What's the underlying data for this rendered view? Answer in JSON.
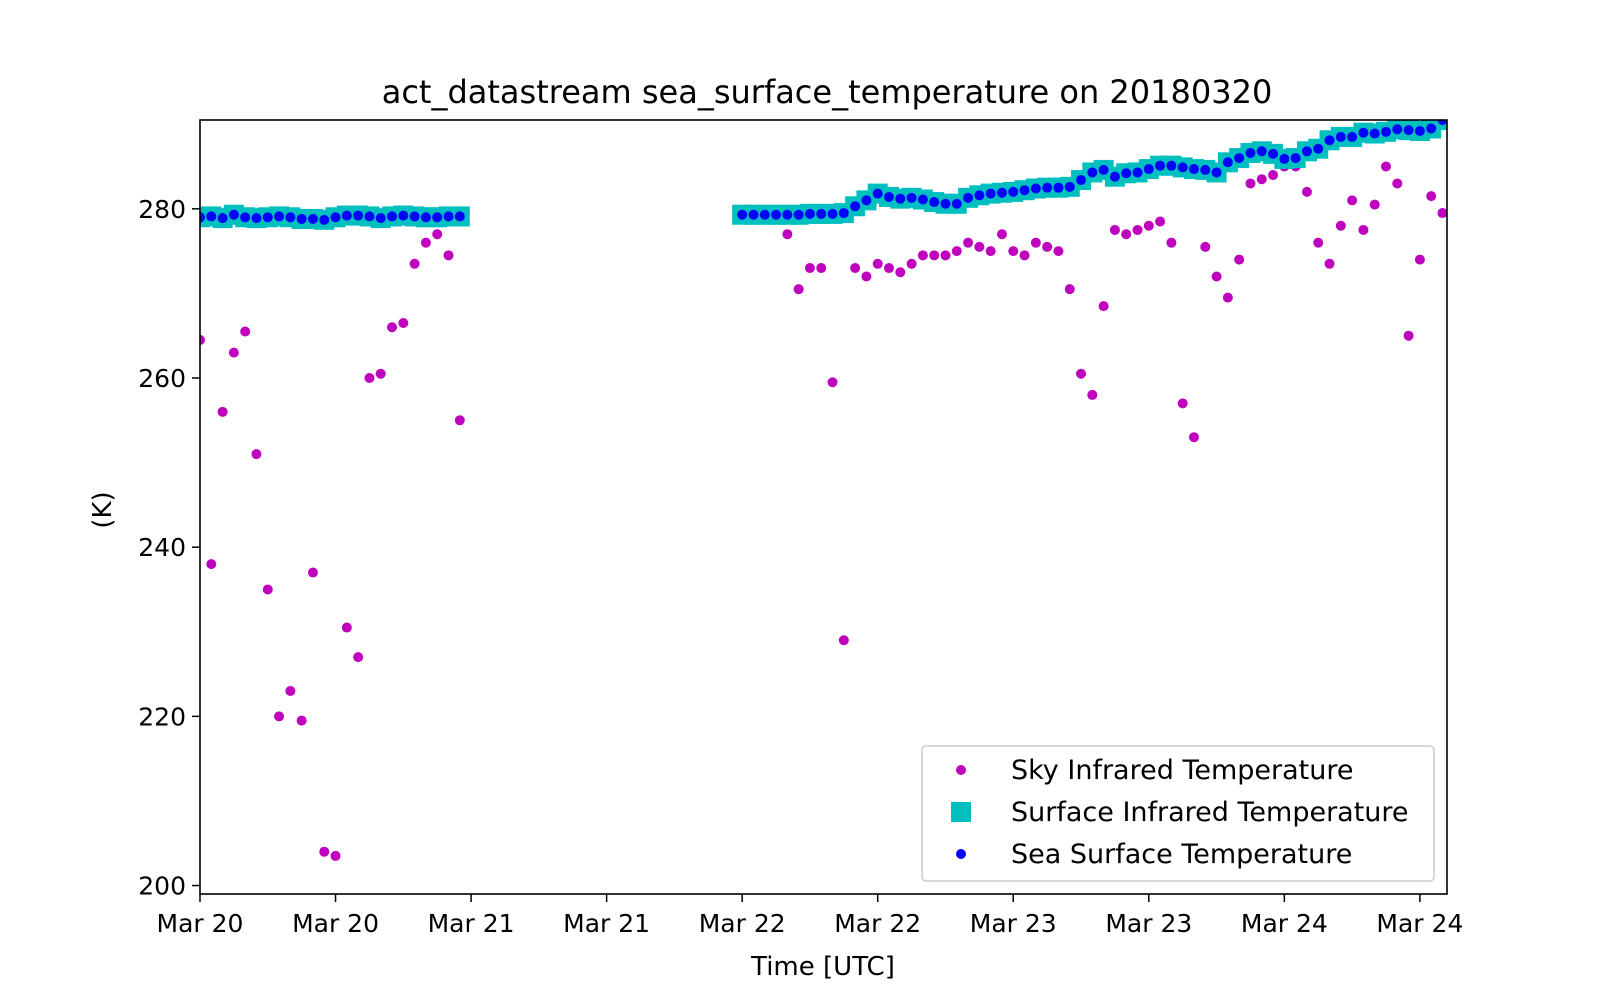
{
  "chart_data": {
    "type": "scatter",
    "title": "act_datastream sea_surface_temperature on 20180320",
    "xlabel": "Time [UTC]",
    "ylabel": "(K)",
    "xlim": [
      0,
      92
    ],
    "ylim": [
      199,
      290.5
    ],
    "x_unit": "hours after start of Mar 20 (axis shows Mar 20 ... Mar 24)",
    "x_ticks": [
      {
        "value": 0,
        "label": "Mar 20"
      },
      {
        "value": 10,
        "label": "Mar 20"
      },
      {
        "value": 20,
        "label": "Mar 21"
      },
      {
        "value": 30,
        "label": "Mar 21"
      },
      {
        "value": 40,
        "label": "Mar 22"
      },
      {
        "value": 50,
        "label": "Mar 22"
      },
      {
        "value": 60,
        "label": "Mar 23"
      },
      {
        "value": 70,
        "label": "Mar 23"
      },
      {
        "value": 80,
        "label": "Mar 24"
      },
      {
        "value": 90,
        "label": "Mar 24"
      }
    ],
    "y_ticks": [
      200,
      220,
      240,
      260,
      280
    ],
    "grid": false,
    "legend_position": "lower-right",
    "colors": {
      "sky": "#bf00bf",
      "surface": "#00bfbf",
      "sea": "#0000ff"
    },
    "series": [
      {
        "name": "Sky Infrared Temperature",
        "marker": "circle",
        "color": "#bf00bf",
        "x": [
          0,
          0.833,
          1.667,
          2.5,
          3.333,
          4.167,
          5,
          5.833,
          6.667,
          7.5,
          8.333,
          9.167,
          10,
          10.833,
          11.667,
          12.5,
          13.333,
          14.167,
          15,
          15.833,
          16.667,
          17.5,
          18.333,
          19.167,
          43.333,
          44.167,
          45,
          45.833,
          46.667,
          47.5,
          48.333,
          49.167,
          50,
          50.833,
          51.667,
          52.5,
          53.333,
          54.167,
          55,
          55.833,
          56.667,
          57.5,
          58.333,
          59.167,
          60,
          60.833,
          61.667,
          62.5,
          63.333,
          64.167,
          65,
          65.833,
          66.667,
          67.5,
          68.333,
          69.167,
          70,
          70.833,
          71.667,
          72.5,
          73.333,
          74.167,
          75,
          75.833,
          76.667,
          77.5,
          78.333,
          79.167,
          80,
          80.833,
          81.667,
          82.5,
          83.333,
          84.167,
          85,
          85.833,
          86.667,
          87.5,
          88.333,
          89.167,
          90,
          90.833,
          91.667
        ],
        "y": [
          264.5,
          238,
          256,
          263,
          265.5,
          251,
          235,
          220,
          223,
          219.5,
          237,
          204,
          203.5,
          230.5,
          227,
          260,
          260.5,
          266,
          266.5,
          273.5,
          276,
          277,
          274.5,
          255,
          277,
          270.5,
          273,
          273,
          259.5,
          229,
          273,
          272,
          273.5,
          273,
          272.5,
          273.5,
          274.5,
          274.5,
          274.5,
          275,
          276,
          275.5,
          275,
          277,
          275,
          274.5,
          276,
          275.5,
          275,
          270.5,
          260.5,
          258,
          268.5,
          277.5,
          277,
          277.5,
          278,
          278.5,
          276,
          257,
          253,
          275.5,
          272,
          269.5,
          274,
          283,
          283.5,
          284,
          285,
          285,
          282,
          276,
          273.5,
          278,
          281,
          277.5,
          280.5,
          285,
          283,
          265,
          274,
          281.5,
          279.5
        ]
      },
      {
        "name": "Surface Infrared Temperature",
        "marker": "square",
        "color": "#00bfbf",
        "x": [
          0,
          0.833,
          1.667,
          2.5,
          3.333,
          4.167,
          5,
          5.833,
          6.667,
          7.5,
          8.333,
          9.167,
          10,
          10.833,
          11.667,
          12.5,
          13.333,
          14.167,
          15,
          15.833,
          16.667,
          17.5,
          18.333,
          19.167,
          40,
          40.833,
          41.667,
          42.5,
          43.333,
          44.167,
          45,
          45.833,
          46.667,
          47.5,
          48.333,
          49.167,
          50,
          50.833,
          51.667,
          52.5,
          53.333,
          54.167,
          55,
          55.833,
          56.667,
          57.5,
          58.333,
          59.167,
          60,
          60.833,
          61.667,
          62.5,
          63.333,
          64.167,
          65,
          65.833,
          66.667,
          67.5,
          68.333,
          69.167,
          70,
          70.833,
          71.667,
          72.5,
          73.333,
          74.167,
          75,
          75.833,
          76.667,
          77.5,
          78.333,
          79.167,
          80,
          80.833,
          81.667,
          82.5,
          83.333,
          84.167,
          85,
          85.833,
          86.667,
          87.5,
          88.333,
          89.167,
          90,
          90.833,
          91.667
        ],
        "y": [
          279,
          279.1,
          278.9,
          279.3,
          279,
          278.9,
          279,
          279.1,
          279,
          278.8,
          278.8,
          278.7,
          279,
          279.2,
          279.2,
          279.1,
          278.9,
          279.1,
          279.2,
          279.1,
          279,
          279,
          279.1,
          279.1,
          279.3,
          279.3,
          279.3,
          279.3,
          279.3,
          279.3,
          279.4,
          279.4,
          279.4,
          279.5,
          280.3,
          281,
          281.8,
          281.4,
          281.2,
          281.3,
          281.1,
          280.8,
          280.6,
          280.6,
          281.3,
          281.6,
          281.8,
          281.9,
          282,
          282.2,
          282.4,
          282.5,
          282.5,
          282.6,
          283.4,
          284.3,
          284.6,
          283.8,
          284.2,
          284.3,
          284.7,
          285.1,
          285.1,
          284.9,
          284.7,
          284.6,
          284.3,
          285.5,
          286,
          286.6,
          286.8,
          286.5,
          285.9,
          286,
          286.8,
          287.1,
          288.1,
          288.5,
          288.5,
          289,
          288.9,
          289.1,
          289.4,
          289.3,
          289.2,
          289.5,
          290.5
        ]
      },
      {
        "name": "Sea Surface Temperature",
        "marker": "circle",
        "color": "#0000ff",
        "x": [
          0,
          0.833,
          1.667,
          2.5,
          3.333,
          4.167,
          5,
          5.833,
          6.667,
          7.5,
          8.333,
          9.167,
          10,
          10.833,
          11.667,
          12.5,
          13.333,
          14.167,
          15,
          15.833,
          16.667,
          17.5,
          18.333,
          19.167,
          40,
          40.833,
          41.667,
          42.5,
          43.333,
          44.167,
          45,
          45.833,
          46.667,
          47.5,
          48.333,
          49.167,
          50,
          50.833,
          51.667,
          52.5,
          53.333,
          54.167,
          55,
          55.833,
          56.667,
          57.5,
          58.333,
          59.167,
          60,
          60.833,
          61.667,
          62.5,
          63.333,
          64.167,
          65,
          65.833,
          66.667,
          67.5,
          68.333,
          69.167,
          70,
          70.833,
          71.667,
          72.5,
          73.333,
          74.167,
          75,
          75.833,
          76.667,
          77.5,
          78.333,
          79.167,
          80,
          80.833,
          81.667,
          82.5,
          83.333,
          84.167,
          85,
          85.833,
          86.667,
          87.5,
          88.333,
          89.167,
          90,
          90.833,
          91.667
        ],
        "y": [
          279,
          279.1,
          278.9,
          279.3,
          279,
          278.9,
          279,
          279.1,
          279,
          278.8,
          278.8,
          278.7,
          279,
          279.2,
          279.2,
          279.1,
          278.9,
          279.1,
          279.2,
          279.1,
          279,
          279,
          279.1,
          279.1,
          279.3,
          279.3,
          279.3,
          279.3,
          279.3,
          279.3,
          279.4,
          279.4,
          279.4,
          279.5,
          280.3,
          281,
          281.8,
          281.4,
          281.2,
          281.3,
          281.1,
          280.8,
          280.6,
          280.6,
          281.3,
          281.6,
          281.8,
          281.9,
          282,
          282.2,
          282.4,
          282.5,
          282.5,
          282.6,
          283.4,
          284.3,
          284.6,
          283.8,
          284.2,
          284.3,
          284.7,
          285.1,
          285.1,
          284.9,
          284.7,
          284.6,
          284.3,
          285.5,
          286,
          286.6,
          286.8,
          286.5,
          285.9,
          286,
          286.8,
          287.1,
          288.1,
          288.5,
          288.5,
          289,
          288.9,
          289.1,
          289.4,
          289.3,
          289.2,
          289.5,
          290.5
        ]
      }
    ]
  }
}
